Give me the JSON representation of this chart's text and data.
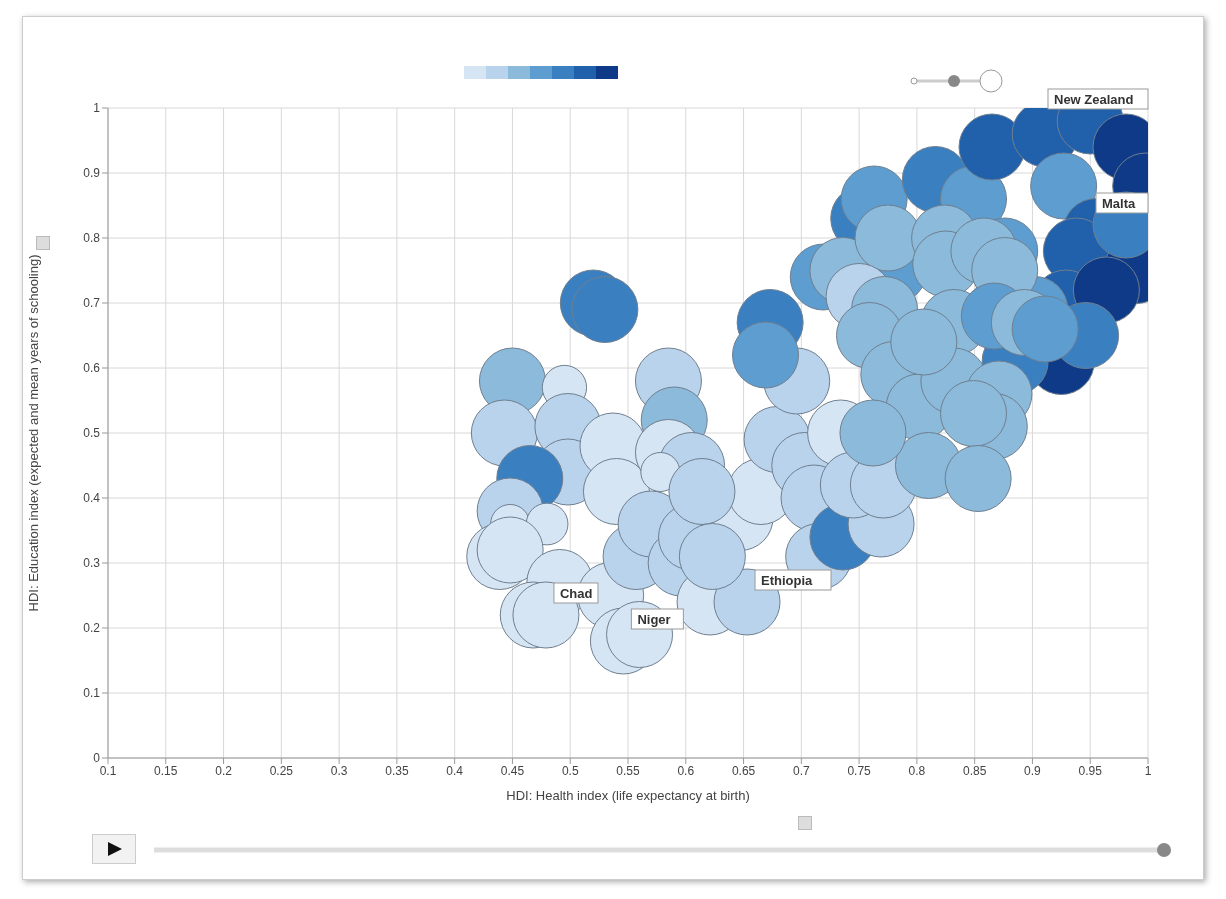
{
  "chart_data": {
    "type": "bubble",
    "xlabel": "HDI: Health index (life expectancy at birth)",
    "ylabel": "HDI: Education index (expected and mean years of schooling)",
    "xlim": [
      0.1,
      1
    ],
    "xticks": [
      0.1,
      0.15,
      0.2,
      0.25,
      0.3,
      0.35,
      0.4,
      0.45,
      0.5,
      0.55,
      0.6,
      0.65,
      0.7,
      0.75,
      0.8,
      0.85,
      0.9,
      0.95,
      1
    ],
    "ylim": [
      0,
      1
    ],
    "yticks": [
      0,
      0.1,
      0.2,
      0.3,
      0.4,
      0.5,
      0.6,
      0.7,
      0.8,
      0.9,
      1
    ],
    "grid": true,
    "x": [
      0.52,
      0.53,
      0.45,
      0.495,
      0.443,
      0.498,
      0.498,
      0.465,
      0.537,
      0.54,
      0.585,
      0.59,
      0.585,
      0.605,
      0.578,
      0.448,
      0.448,
      0.48,
      0.439,
      0.448,
      0.491,
      0.468,
      0.479,
      0.535,
      0.546,
      0.56,
      0.557,
      0.57,
      0.596,
      0.605,
      0.621,
      0.653,
      0.647,
      0.665,
      0.614,
      0.623,
      0.679,
      0.696,
      0.703,
      0.711,
      0.715,
      0.736,
      0.734,
      0.769,
      0.745,
      0.771,
      0.673,
      0.669,
      0.754,
      0.763,
      0.816,
      0.849,
      0.865,
      0.911,
      0.95,
      0.981,
      0.998,
      0.927,
      0.955,
      0.938,
      0.99,
      0.929,
      0.964,
      0.925,
      0.946,
      0.885,
      0.902,
      0.876,
      0.78,
      0.719,
      0.736,
      0.775,
      0.824,
      0.825,
      0.858,
      0.876,
      0.75,
      0.772,
      0.759,
      0.832,
      0.867,
      0.893,
      0.911,
      0.78,
      0.802,
      0.832,
      0.871,
      0.867,
      0.849,
      0.81,
      0.853,
      0.762,
      0.981,
      0.806
    ],
    "values": [
      0.7,
      0.69,
      0.58,
      0.57,
      0.5,
      0.51,
      0.44,
      0.43,
      0.48,
      0.41,
      0.58,
      0.52,
      0.47,
      0.45,
      0.44,
      0.38,
      0.36,
      0.36,
      0.31,
      0.32,
      0.27,
      0.22,
      0.22,
      0.25,
      0.18,
      0.19,
      0.31,
      0.36,
      0.3,
      0.34,
      0.24,
      0.24,
      0.37,
      0.41,
      0.41,
      0.31,
      0.49,
      0.58,
      0.45,
      0.4,
      0.31,
      0.34,
      0.5,
      0.36,
      0.42,
      0.42,
      0.67,
      0.62,
      0.83,
      0.86,
      0.89,
      0.86,
      0.94,
      0.96,
      0.98,
      0.94,
      0.88,
      0.88,
      0.81,
      0.78,
      0.75,
      0.7,
      0.72,
      0.61,
      0.65,
      0.61,
      0.69,
      0.78,
      0.75,
      0.74,
      0.75,
      0.8,
      0.8,
      0.76,
      0.78,
      0.75,
      0.71,
      0.69,
      0.65,
      0.67,
      0.68,
      0.67,
      0.66,
      0.59,
      0.54,
      0.58,
      0.56,
      0.51,
      0.53,
      0.45,
      0.43,
      0.5,
      0.82,
      0.64
    ],
    "sizes": [
      1,
      1,
      1,
      0.45,
      1,
      1,
      1,
      1,
      1,
      1,
      1,
      1,
      1,
      1,
      0.35,
      1,
      0.35,
      0.4,
      1,
      1,
      1,
      1,
      1,
      1,
      1,
      1,
      1,
      1,
      1,
      1,
      1,
      1,
      1,
      1,
      1,
      1,
      1,
      1,
      1,
      1,
      1,
      1,
      1,
      1,
      1,
      1,
      1,
      1,
      1,
      1,
      1,
      1,
      1,
      1,
      1,
      1,
      1,
      1,
      1,
      1,
      1,
      1,
      1,
      1,
      1,
      1,
      1,
      1,
      1,
      1,
      1,
      1,
      1,
      1,
      1,
      1,
      1,
      1,
      1,
      1,
      1,
      1,
      1,
      1,
      1,
      1,
      1,
      1,
      1,
      1,
      1,
      1,
      1,
      1
    ],
    "colors": [
      "#3a7fc0",
      "#3a7fc0",
      "#8cbadb",
      "#d6e5f4",
      "#b9d3ec",
      "#b9d3ec",
      "#b9d3ec",
      "#3a7fc0",
      "#d6e5f4",
      "#d6e5f4",
      "#b9d3ec",
      "#8cbadb",
      "#d6e5f4",
      "#b9d3ec",
      "#d6e5f4",
      "#b9d3ec",
      "#d6e5f4",
      "#d6e5f4",
      "#d6e5f4",
      "#d6e5f4",
      "#d6e5f4",
      "#d6e5f4",
      "#d6e5f4",
      "#d6e5f4",
      "#d6e5f4",
      "#d6e5f4",
      "#b9d3ec",
      "#b9d3ec",
      "#b9d3ec",
      "#b9d3ec",
      "#d6e5f4",
      "#b9d3ec",
      "#d6e5f4",
      "#d6e5f4",
      "#b9d3ec",
      "#b9d3ec",
      "#b9d3ec",
      "#b9d3ec",
      "#b9d3ec",
      "#b9d3ec",
      "#b9d3ec",
      "#3a7fc0",
      "#d6e5f4",
      "#b9d3ec",
      "#b9d3ec",
      "#b9d3ec",
      "#3a7fc0",
      "#5d9dd0",
      "#3a7fc0",
      "#5d9dd0",
      "#3a7fc0",
      "#5d9dd0",
      "#2160ab",
      "#2160ab",
      "#2160ab",
      "#0f3a87",
      "#0f3a87",
      "#5d9dd0",
      "#2160ab",
      "#2160ab",
      "#0f3a87",
      "#2160ab",
      "#0f3a87",
      "#0f3a87",
      "#3a7fc0",
      "#3a7fc0",
      "#5d9dd0",
      "#5d9dd0",
      "#5d9dd0",
      "#5d9dd0",
      "#8cbadb",
      "#8cbadb",
      "#8cbadb",
      "#8cbadb",
      "#8cbadb",
      "#8cbadb",
      "#b9d3ec",
      "#8cbadb",
      "#8cbadb",
      "#8cbadb",
      "#5d9dd0",
      "#8cbadb",
      "#5d9dd0",
      "#8cbadb",
      "#8cbadb",
      "#8cbadb",
      "#8cbadb",
      "#8cbadb",
      "#8cbadb",
      "#8cbadb",
      "#8cbadb",
      "#8cbadb",
      "#3a7fc0",
      "#8cbadb"
    ],
    "annotations": [
      {
        "text": "New Zealand",
        "x": 0.95,
        "y": 0.98
      },
      {
        "text": "Malta",
        "x": 0.981,
        "y": 0.82
      },
      {
        "text": "Chad",
        "x": 0.479,
        "y": 0.22
      },
      {
        "text": "Niger",
        "x": 0.546,
        "y": 0.18
      },
      {
        "text": "Ethiopia",
        "x": 0.653,
        "y": 0.24
      }
    ]
  }
}
